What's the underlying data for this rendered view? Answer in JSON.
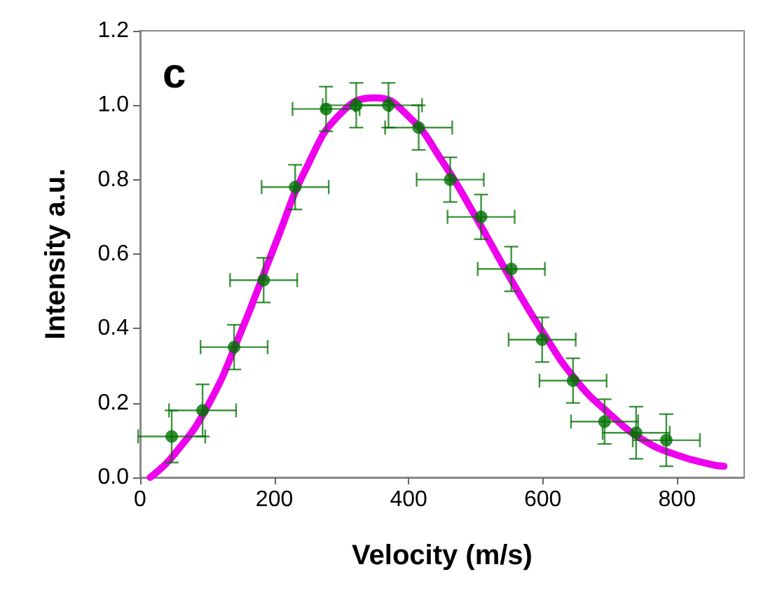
{
  "chart_data": {
    "type": "scatter",
    "xlabel": "Velocity (m/s)",
    "ylabel": "Intensity a.u.",
    "annotations": [
      "c"
    ],
    "xlim": [
      0,
      900
    ],
    "xticks": [
      0,
      200,
      400,
      600,
      800
    ],
    "ylim": [
      0,
      1.2
    ],
    "yticks": [
      {
        "value": 0,
        "label": "0.0"
      },
      0.2,
      0.4,
      0.6,
      0.8,
      {
        "value": 1,
        "label": "1.0"
      },
      {
        "value": 1.2,
        "label": "1.2"
      }
    ],
    "grid": false,
    "series": [
      {
        "type": "line",
        "marker": "none",
        "color": "#ee00ee",
        "x": [
          15,
          50,
          100,
          150,
          200,
          250,
          300,
          350,
          400,
          450,
          500,
          550,
          600,
          650,
          700,
          750,
          800,
          850,
          870
        ],
        "values": [
          0,
          0.06,
          0.19,
          0.39,
          0.62,
          0.84,
          0.98,
          1.02,
          0.97,
          0.85,
          0.7,
          0.54,
          0.39,
          0.26,
          0.17,
          0.1,
          0.06,
          0.035,
          0.03
        ]
      },
      {
        "marker": "circle",
        "color": "#007000",
        "x": [
          47,
          93,
          140,
          184,
          231,
          277,
          322,
          370,
          415,
          462,
          508,
          553,
          599,
          645,
          692,
          739,
          784
        ],
        "values": [
          0.11,
          0.18,
          0.35,
          0.53,
          0.78,
          0.99,
          1.0,
          1.0,
          0.94,
          0.8,
          0.7,
          0.56,
          0.37,
          0.26,
          0.15,
          0.12,
          0.1
        ],
        "errors": [
          0.07,
          0.07,
          0.06,
          0.06,
          0.06,
          0.06,
          0.06,
          0.06,
          0.06,
          0.06,
          0.06,
          0.06,
          0.06,
          0.06,
          0.06,
          0.07,
          0.07
        ],
        "xerrors": [
          50,
          50,
          50,
          50,
          50,
          50,
          50,
          50,
          50,
          50,
          50,
          50,
          50,
          50,
          50,
          50,
          50
        ]
      }
    ]
  }
}
